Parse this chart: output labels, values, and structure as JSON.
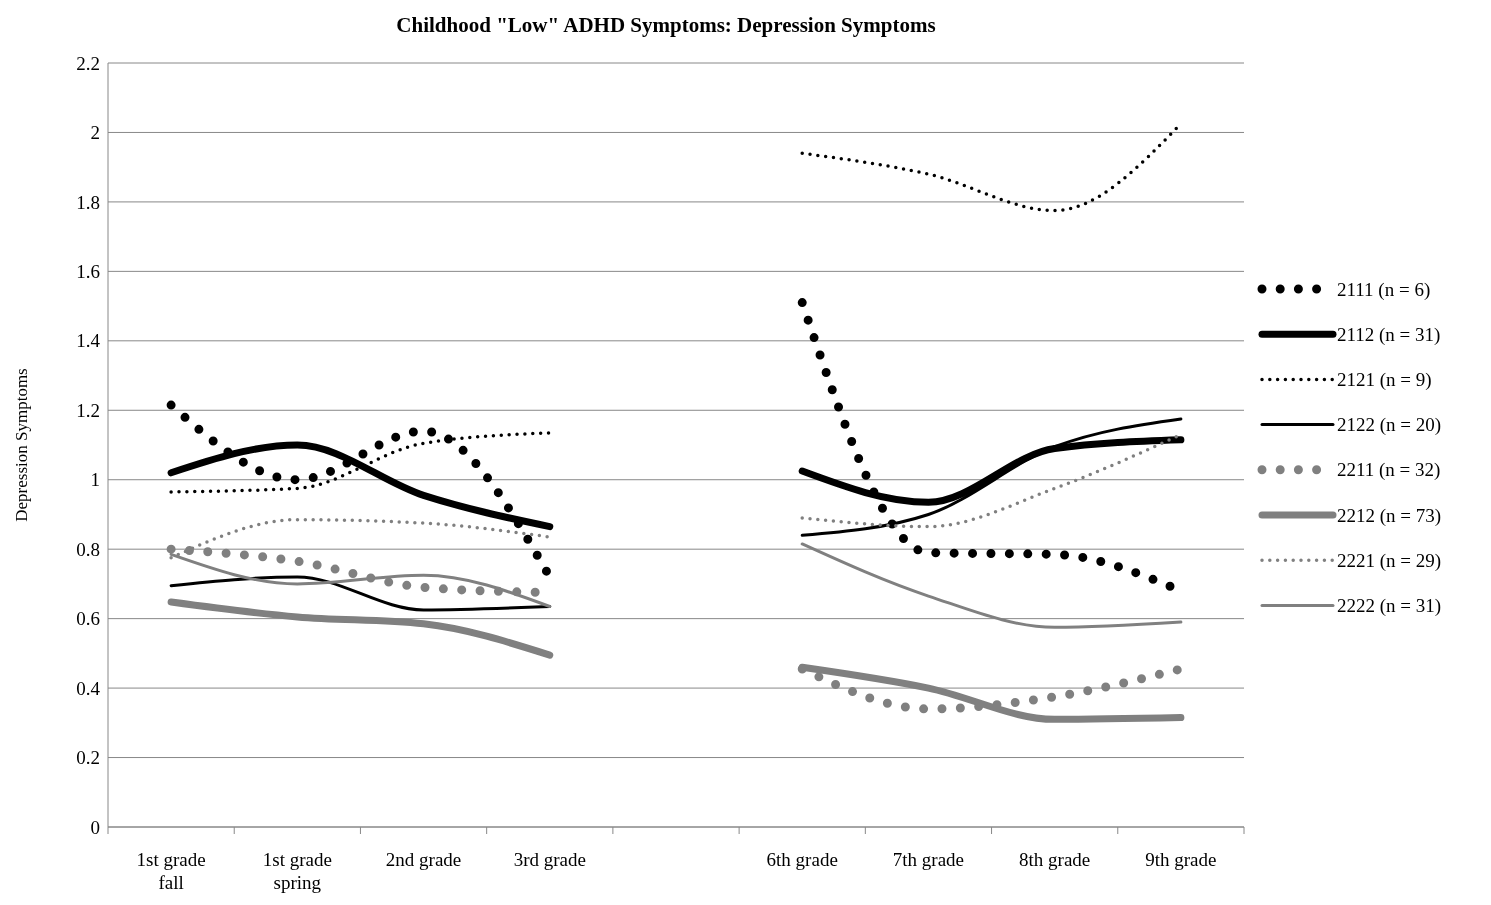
{
  "chart_data": {
    "type": "line",
    "title": "Childhood \"Low\" ADHD Symptoms: Depression Symptoms",
    "ylabel": "Depression Symptoms",
    "categories": [
      "1st grade fall",
      "1st grade spring",
      "2nd grade",
      "3rd grade",
      null,
      "6th grade",
      "7th grade",
      "8th grade",
      "9th grade"
    ],
    "ylim": [
      0,
      2.2
    ],
    "yticks": [
      0,
      0.2,
      0.4,
      0.6,
      0.8,
      1,
      1.2,
      1.4,
      1.6,
      1.8,
      2,
      2.2
    ],
    "grid": "y",
    "legend": "right",
    "marker": "none",
    "series": [
      {
        "name": "2111 (n = 6)",
        "color": "#000000",
        "line_style": "dotted",
        "values": [
          1.215,
          1.0,
          1.14,
          0.72,
          null,
          1.51,
          0.79,
          0.785,
          0.68
        ]
      },
      {
        "name": "2112 (n = 31)",
        "color": "#000000",
        "line_style": "solid",
        "values": [
          1.02,
          1.1,
          0.955,
          0.865,
          null,
          1.025,
          0.935,
          1.09,
          1.115
        ]
      },
      {
        "name": "2121 (n = 9)",
        "color": "#000000",
        "line_style": "dotted",
        "values": [
          0.965,
          0.975,
          1.105,
          1.135,
          null,
          1.94,
          1.88,
          1.775,
          2.025
        ]
      },
      {
        "name": "2122 (n = 20)",
        "color": "#000000",
        "line_style": "solid",
        "values": [
          0.695,
          0.72,
          0.625,
          0.635,
          null,
          0.84,
          0.9,
          1.095,
          1.175
        ]
      },
      {
        "name": "2211 (n = 32)",
        "color": "#808080",
        "line_style": "dotted",
        "values": [
          0.8,
          0.765,
          0.69,
          0.675,
          null,
          0.455,
          0.34,
          0.375,
          0.455
        ]
      },
      {
        "name": "2212 (n = 73)",
        "color": "#808080",
        "line_style": "solid",
        "values": [
          0.648,
          0.605,
          0.585,
          0.495,
          null,
          0.46,
          0.4,
          0.31,
          0.315
        ]
      },
      {
        "name": "2221 (n = 29)",
        "color": "#808080",
        "line_style": "dotted",
        "values": [
          0.775,
          0.885,
          0.875,
          0.835,
          null,
          0.89,
          0.865,
          0.975,
          1.13
        ]
      },
      {
        "name": "2222 (n = 31)",
        "color": "#808080",
        "line_style": "solid",
        "values": [
          0.785,
          0.7,
          0.725,
          0.635,
          null,
          0.815,
          0.665,
          0.575,
          0.59
        ]
      }
    ]
  }
}
